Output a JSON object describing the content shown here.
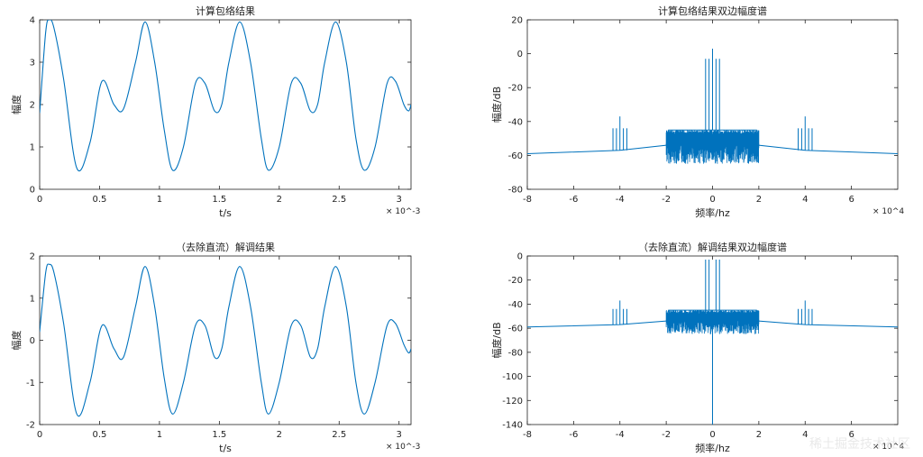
{
  "chart_data": [
    {
      "type": "line",
      "title": "计算包络结果",
      "xlabel": "t/s",
      "ylabel": "幅度",
      "x_multiplier": "× 10^-3",
      "xlim": [
        0,
        3.1
      ],
      "ylim": [
        0,
        4
      ],
      "xticks": [
        "0",
        "0.5",
        "1",
        "1.5",
        "2",
        "2.5",
        "3"
      ],
      "yticks": [
        "0",
        "1",
        "2",
        "3",
        "4"
      ],
      "series": [
        {
          "x": [
            0,
            0.05,
            0.08,
            0.12,
            0.2,
            0.31,
            0.42,
            0.52,
            0.62,
            0.7,
            0.8,
            0.88,
            0.96,
            1.04,
            1.11,
            1.2,
            1.3,
            1.38,
            1.46,
            1.52,
            1.58,
            1.67,
            1.76,
            1.85,
            1.91,
            2.0,
            2.1,
            2.18,
            2.26,
            2.32,
            2.38,
            2.47,
            2.56,
            2.64,
            2.71,
            2.8,
            2.9,
            2.97,
            3.04,
            3.08,
            3.1
          ],
          "y": [
            1.8,
            3.7,
            4.0,
            3.8,
            2.6,
            0.5,
            1.1,
            2.55,
            2.0,
            1.9,
            3.0,
            3.95,
            3.0,
            1.4,
            0.45,
            1.0,
            2.5,
            2.5,
            1.85,
            2.0,
            3.0,
            3.95,
            3.0,
            1.2,
            0.45,
            1.0,
            2.5,
            2.5,
            1.85,
            2.0,
            3.0,
            3.95,
            3.0,
            1.2,
            0.45,
            1.0,
            2.5,
            2.55,
            2.0,
            1.85,
            2.0
          ]
        }
      ]
    },
    {
      "type": "line",
      "title": "计算包络结果双边幅度谱",
      "xlabel": "频率/hz",
      "ylabel": "幅度/dB",
      "x_multiplier": "× 10^4",
      "xlim": [
        -8,
        8
      ],
      "ylim": [
        -80,
        20
      ],
      "xticks": [
        "-8",
        "-6",
        "-4",
        "-2",
        "0",
        "2",
        "4",
        "6"
      ],
      "yticks": [
        "-80",
        "-60",
        "-40",
        "-20",
        "0",
        "20"
      ],
      "floor": [
        [
          -8,
          -59
        ],
        [
          -4,
          -57
        ],
        [
          -2,
          -54
        ],
        [
          -1.9,
          -45
        ],
        [
          1.9,
          -45
        ],
        [
          2,
          -54
        ],
        [
          4,
          -57
        ],
        [
          8,
          -59
        ]
      ],
      "band": {
        "x_range": [
          -2,
          2
        ],
        "top": -45,
        "bottom": -65
      },
      "spikes": [
        {
          "x": -0.3,
          "y": -3
        },
        {
          "x": -0.15,
          "y": -3
        },
        {
          "x": 0,
          "y": 3
        },
        {
          "x": 0.15,
          "y": -3
        },
        {
          "x": 0.3,
          "y": -3
        },
        {
          "x": -4.3,
          "y": -44
        },
        {
          "x": -4.15,
          "y": -44
        },
        {
          "x": -4.0,
          "y": -37
        },
        {
          "x": -3.85,
          "y": -44
        },
        {
          "x": -3.7,
          "y": -44
        },
        {
          "x": 3.7,
          "y": -44
        },
        {
          "x": 3.85,
          "y": -44
        },
        {
          "x": 4.0,
          "y": -37
        },
        {
          "x": 4.15,
          "y": -44
        },
        {
          "x": 4.3,
          "y": -44
        }
      ]
    },
    {
      "type": "line",
      "title": "（去除直流）解调结果",
      "xlabel": "t/s",
      "ylabel": "幅度",
      "x_multiplier": "× 10^-3",
      "xlim": [
        0,
        3.1
      ],
      "ylim": [
        -2,
        2
      ],
      "xticks": [
        "0",
        "0.5",
        "1",
        "1.5",
        "2",
        "2.5",
        "3"
      ],
      "yticks": [
        "-2",
        "-1",
        "0",
        "1",
        "2"
      ],
      "series": [
        {
          "x": [
            0,
            0.05,
            0.08,
            0.12,
            0.2,
            0.31,
            0.42,
            0.52,
            0.62,
            0.7,
            0.8,
            0.88,
            0.96,
            1.04,
            1.11,
            1.2,
            1.3,
            1.38,
            1.46,
            1.52,
            1.58,
            1.67,
            1.76,
            1.85,
            1.91,
            2.0,
            2.1,
            2.18,
            2.26,
            2.32,
            2.38,
            2.47,
            2.56,
            2.64,
            2.71,
            2.8,
            2.9,
            2.97,
            3.04,
            3.08,
            3.1
          ],
          "y": [
            0.2,
            1.6,
            1.8,
            1.6,
            0.4,
            -1.75,
            -1.0,
            0.35,
            -0.2,
            -0.4,
            0.8,
            1.75,
            0.8,
            -0.9,
            -1.75,
            -1.0,
            0.35,
            0.35,
            -0.4,
            -0.2,
            0.8,
            1.75,
            0.8,
            -1.0,
            -1.75,
            -1.0,
            0.35,
            0.35,
            -0.4,
            -0.2,
            0.8,
            1.75,
            0.8,
            -1.0,
            -1.75,
            -1.0,
            0.35,
            0.4,
            -0.1,
            -0.3,
            -0.2
          ]
        }
      ]
    },
    {
      "type": "line",
      "title": "（去除直流）解调结果双边幅度谱",
      "xlabel": "频率/hz",
      "ylabel": "幅度/dB",
      "x_multiplier": "× 10^4",
      "xlim": [
        -8,
        8
      ],
      "ylim": [
        -140,
        0
      ],
      "xticks": [
        "-8",
        "-6",
        "-4",
        "-2",
        "0",
        "2",
        "4",
        "6"
      ],
      "yticks": [
        "-140",
        "-120",
        "-100",
        "-80",
        "-60",
        "-40",
        "-20",
        "0"
      ],
      "floor": [
        [
          -8,
          -59
        ],
        [
          -4,
          -57
        ],
        [
          -2,
          -54
        ],
        [
          -1.9,
          -45
        ],
        [
          1.9,
          -45
        ],
        [
          2,
          -54
        ],
        [
          4,
          -57
        ],
        [
          8,
          -59
        ]
      ],
      "band": {
        "x_range": [
          -2,
          2
        ],
        "top": -45,
        "bottom": -65
      },
      "spikes": [
        {
          "x": -0.3,
          "y": -3
        },
        {
          "x": -0.15,
          "y": -3
        },
        {
          "x": 0,
          "y": -140
        },
        {
          "x": 0.15,
          "y": -3
        },
        {
          "x": 0.3,
          "y": -3
        },
        {
          "x": -4.3,
          "y": -44
        },
        {
          "x": -4.15,
          "y": -44
        },
        {
          "x": -4.0,
          "y": -37
        },
        {
          "x": -3.85,
          "y": -44
        },
        {
          "x": -3.7,
          "y": -44
        },
        {
          "x": 3.7,
          "y": -44
        },
        {
          "x": 3.85,
          "y": -44
        },
        {
          "x": 4.0,
          "y": -37
        },
        {
          "x": 4.15,
          "y": -44
        },
        {
          "x": 4.3,
          "y": -44
        }
      ]
    }
  ],
  "watermark": "稀土掘金技术社区",
  "colors": {
    "line": "#0072BD",
    "axis": "#222222"
  }
}
